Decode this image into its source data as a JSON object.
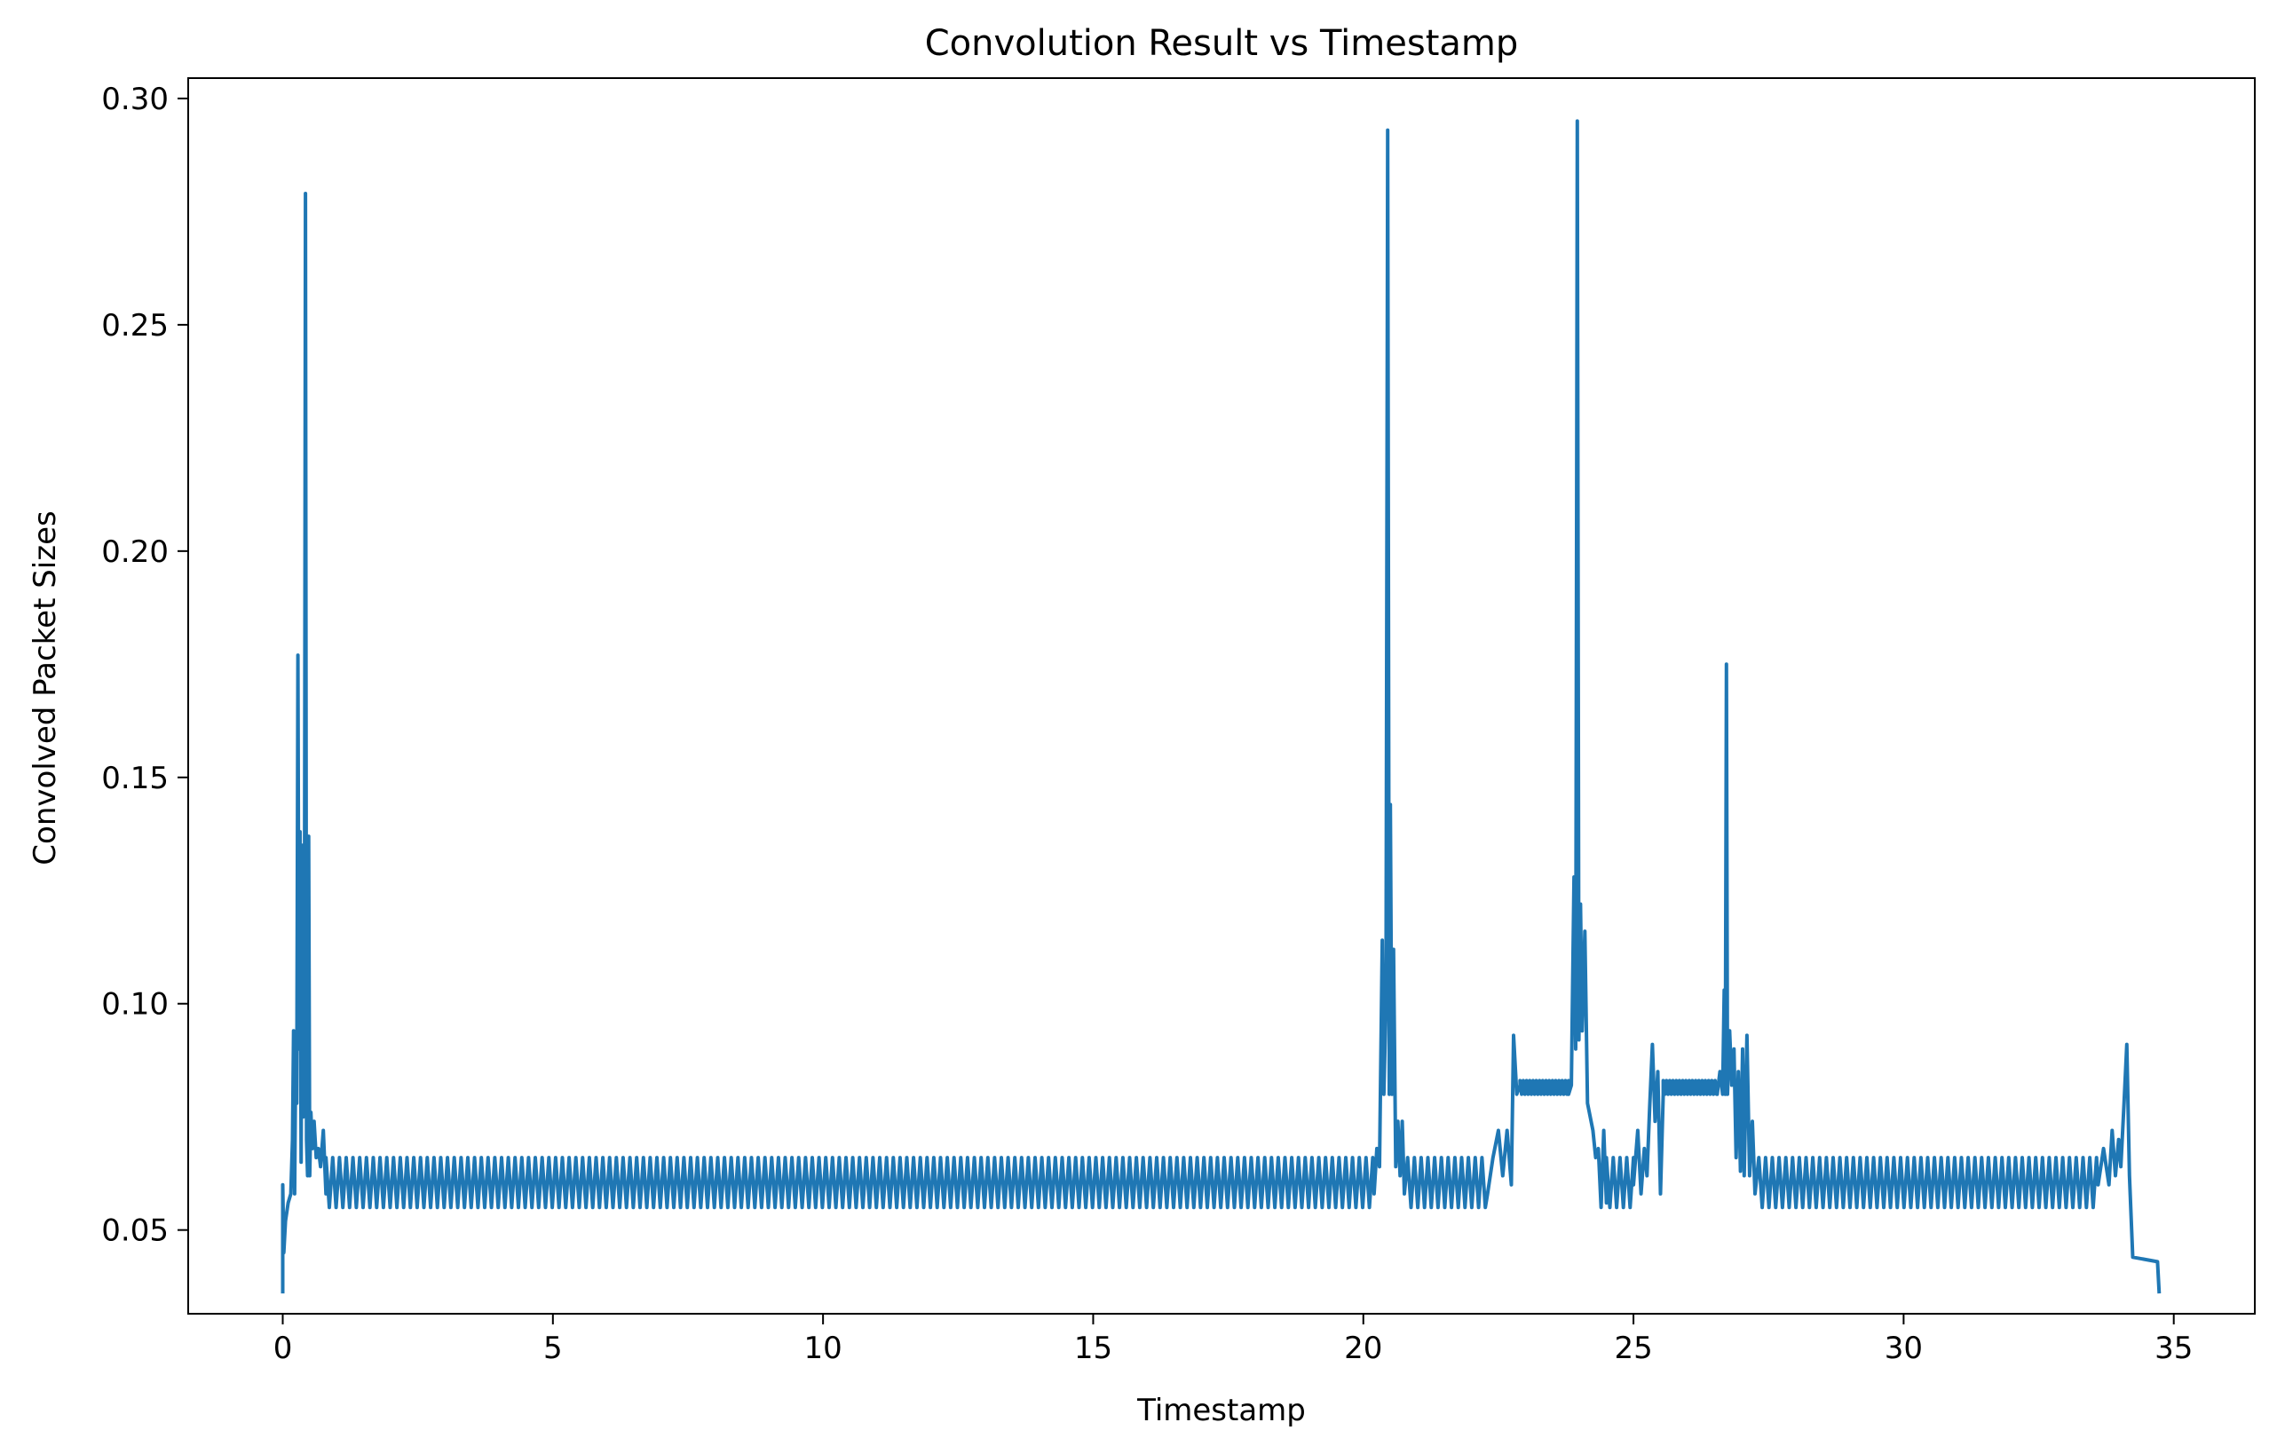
{
  "chart_data": {
    "type": "line",
    "title": "Convolution Result vs Timestamp",
    "xlabel": "Timestamp",
    "ylabel": "Convolved Packet Sizes",
    "xlim": [
      -1.75,
      36.5
    ],
    "ylim": [
      0.0315,
      0.3045
    ],
    "xticks": [
      0,
      5,
      10,
      15,
      20,
      25,
      30,
      35
    ],
    "xtick_labels": [
      "0",
      "5",
      "10",
      "15",
      "20",
      "25",
      "30",
      "35"
    ],
    "yticks": [
      0.05,
      0.1,
      0.15,
      0.2,
      0.25,
      0.3
    ],
    "ytick_labels": [
      "0.05",
      "0.10",
      "0.15",
      "0.20",
      "0.25",
      "0.30"
    ],
    "grid": false,
    "line_color": "#1f77b4",
    "series": [
      {
        "segments": [
          {
            "kind": "points",
            "points": [
              [
                0.0,
                0.036
              ],
              [
                0.0,
                0.06
              ],
              [
                0.02,
                0.045
              ],
              [
                0.05,
                0.052
              ],
              [
                0.1,
                0.056
              ],
              [
                0.15,
                0.058
              ],
              [
                0.18,
                0.07
              ],
              [
                0.2,
                0.094
              ],
              [
                0.22,
                0.058
              ],
              [
                0.24,
                0.088
              ],
              [
                0.26,
                0.078
              ],
              [
                0.28,
                0.177
              ],
              [
                0.3,
                0.09
              ],
              [
                0.32,
                0.138
              ],
              [
                0.34,
                0.065
              ],
              [
                0.36,
                0.135
              ],
              [
                0.38,
                0.075
              ],
              [
                0.4,
                0.1
              ],
              [
                0.42,
                0.279
              ],
              [
                0.44,
                0.07
              ],
              [
                0.46,
                0.062
              ],
              [
                0.48,
                0.137
              ],
              [
                0.5,
                0.062
              ],
              [
                0.52,
                0.076
              ],
              [
                0.55,
                0.068
              ],
              [
                0.58,
                0.074
              ],
              [
                0.62,
                0.066
              ],
              [
                0.66,
                0.068
              ],
              [
                0.7,
                0.064
              ],
              [
                0.75,
                0.072
              ],
              [
                0.8,
                0.058
              ]
            ]
          },
          {
            "kind": "oscillation",
            "start": 0.8,
            "end": 20.2,
            "period": 0.125,
            "low": 0.055,
            "high": 0.066
          },
          {
            "kind": "points",
            "points": [
              [
                20.2,
                0.058
              ],
              [
                20.25,
                0.068
              ],
              [
                20.3,
                0.064
              ],
              [
                20.35,
                0.114
              ],
              [
                20.38,
                0.08
              ],
              [
                20.42,
                0.1
              ],
              [
                20.45,
                0.293
              ],
              [
                20.48,
                0.08
              ],
              [
                20.5,
                0.144
              ],
              [
                20.53,
                0.08
              ],
              [
                20.56,
                0.112
              ],
              [
                20.6,
                0.064
              ],
              [
                20.64,
                0.074
              ],
              [
                20.68,
                0.062
              ],
              [
                20.72,
                0.074
              ],
              [
                20.76,
                0.058
              ],
              [
                20.82,
                0.066
              ]
            ]
          },
          {
            "kind": "oscillation",
            "start": 20.82,
            "end": 22.3,
            "period": 0.125,
            "low": 0.055,
            "high": 0.066
          },
          {
            "kind": "points",
            "points": [
              [
                22.3,
                0.058
              ],
              [
                22.4,
                0.066
              ],
              [
                22.5,
                0.072
              ],
              [
                22.58,
                0.062
              ],
              [
                22.66,
                0.072
              ],
              [
                22.74,
                0.06
              ],
              [
                22.78,
                0.093
              ],
              [
                22.84,
                0.08
              ],
              [
                22.9,
                0.082
              ]
            ]
          },
          {
            "kind": "oscillation",
            "start": 22.9,
            "end": 23.8,
            "period": 0.06,
            "low": 0.08,
            "high": 0.083
          },
          {
            "kind": "points",
            "points": [
              [
                23.8,
                0.08
              ],
              [
                23.85,
                0.082
              ],
              [
                23.9,
                0.128
              ],
              [
                23.93,
                0.09
              ],
              [
                23.96,
                0.295
              ],
              [
                23.99,
                0.092
              ],
              [
                24.02,
                0.122
              ],
              [
                24.05,
                0.094
              ],
              [
                24.1,
                0.116
              ],
              [
                24.15,
                0.078
              ],
              [
                24.25,
                0.072
              ],
              [
                24.3,
                0.066
              ],
              [
                24.35,
                0.068
              ],
              [
                24.4,
                0.055
              ],
              [
                24.45,
                0.072
              ],
              [
                24.5,
                0.056
              ]
            ]
          },
          {
            "kind": "oscillation",
            "start": 24.5,
            "end": 25.0,
            "period": 0.125,
            "low": 0.055,
            "high": 0.066
          },
          {
            "kind": "points",
            "points": [
              [
                25.0,
                0.06
              ],
              [
                25.08,
                0.072
              ],
              [
                25.14,
                0.058
              ],
              [
                25.2,
                0.068
              ],
              [
                25.25,
                0.062
              ],
              [
                25.3,
                0.077
              ],
              [
                25.35,
                0.091
              ],
              [
                25.4,
                0.074
              ],
              [
                25.45,
                0.085
              ],
              [
                25.5,
                0.058
              ],
              [
                25.55,
                0.08
              ]
            ]
          },
          {
            "kind": "oscillation",
            "start": 25.55,
            "end": 26.55,
            "period": 0.06,
            "low": 0.08,
            "high": 0.083
          },
          {
            "kind": "points",
            "points": [
              [
                26.55,
                0.08
              ],
              [
                26.6,
                0.085
              ],
              [
                26.65,
                0.08
              ],
              [
                26.68,
                0.103
              ],
              [
                26.7,
                0.08
              ],
              [
                26.72,
                0.175
              ],
              [
                26.74,
                0.08
              ],
              [
                26.78,
                0.094
              ],
              [
                26.82,
                0.082
              ],
              [
                26.86,
                0.09
              ],
              [
                26.9,
                0.066
              ],
              [
                26.94,
                0.085
              ],
              [
                26.98,
                0.063
              ],
              [
                27.02,
                0.09
              ],
              [
                27.05,
                0.062
              ],
              [
                27.1,
                0.093
              ],
              [
                27.15,
                0.062
              ],
              [
                27.2,
                0.074
              ],
              [
                27.25,
                0.058
              ],
              [
                27.32,
                0.066
              ]
            ]
          },
          {
            "kind": "oscillation",
            "start": 27.32,
            "end": 33.6,
            "period": 0.125,
            "low": 0.055,
            "high": 0.066
          },
          {
            "kind": "points",
            "points": [
              [
                33.6,
                0.06
              ],
              [
                33.7,
                0.068
              ],
              [
                33.8,
                0.06
              ],
              [
                33.86,
                0.072
              ],
              [
                33.92,
                0.062
              ],
              [
                33.98,
                0.07
              ],
              [
                34.02,
                0.064
              ],
              [
                34.08,
                0.078
              ],
              [
                34.13,
                0.091
              ],
              [
                34.18,
                0.062
              ],
              [
                34.24,
                0.044
              ],
              [
                34.7,
                0.043
              ],
              [
                34.73,
                0.036
              ]
            ]
          }
        ]
      }
    ]
  }
}
